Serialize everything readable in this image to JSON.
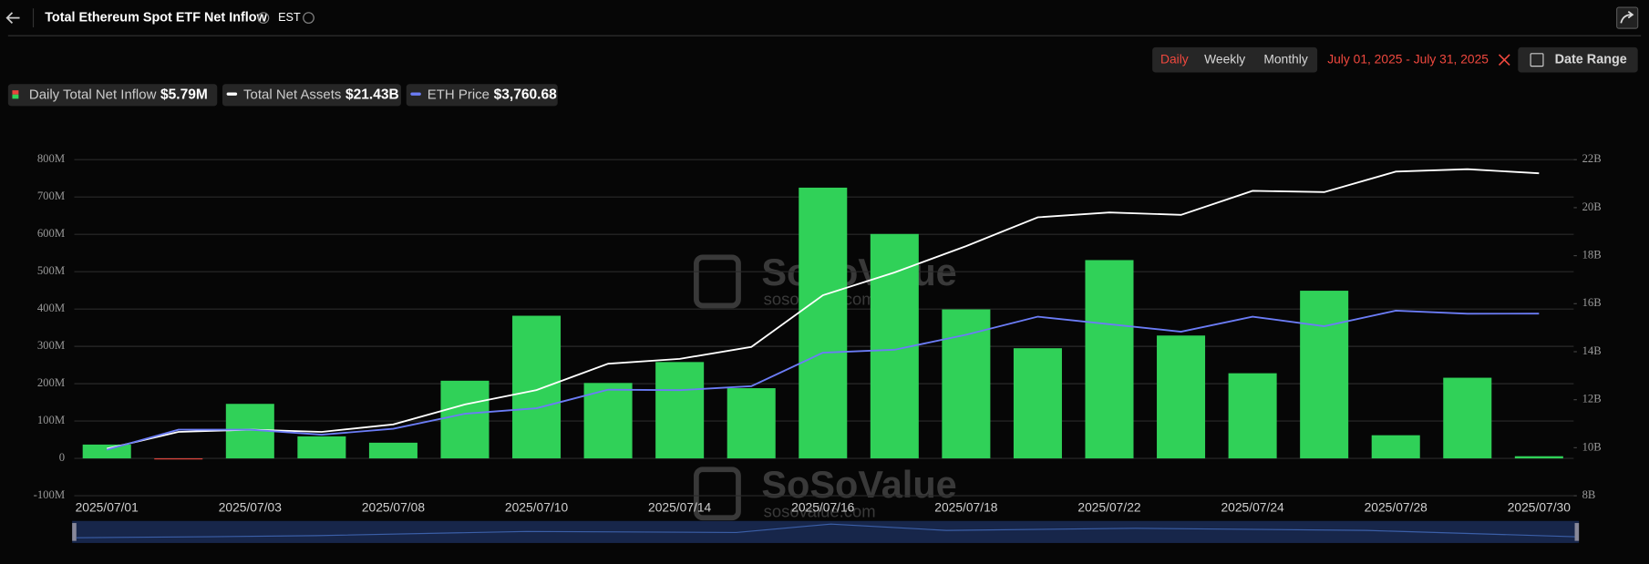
{
  "header": {
    "title": "Total Ethereum Spot ETF Net Inflow",
    "timezone": "EST",
    "periods": [
      "Daily",
      "Weekly",
      "Monthly"
    ],
    "active_period": "Daily",
    "date_range_text": "July 01, 2025 - July 31, 2025",
    "date_range_button": "Date Range"
  },
  "watermark": {
    "brand": "SoSoValue",
    "url": "sosovalue.com"
  },
  "chart_data": {
    "type": "bar-line",
    "categories": [
      "2025/07/01",
      null,
      "2025/07/03",
      null,
      "2025/07/08",
      null,
      "2025/07/10",
      null,
      "2025/07/14",
      null,
      "2025/07/16",
      null,
      "2025/07/18",
      null,
      "2025/07/22",
      null,
      "2025/07/24",
      null,
      "2025/07/28",
      null,
      "2025/07/30"
    ],
    "series": [
      {
        "name": "Daily Total Net Inflow",
        "legend_value": "$5.79M",
        "type": "bar",
        "color": "#30d158",
        "negative_color": "#e8453c",
        "axis": "y",
        "values": [
          37,
          -2,
          146,
          59,
          42,
          208,
          382,
          202,
          258,
          188,
          725,
          601,
          399,
          295,
          531,
          329,
          228,
          449,
          62,
          216,
          5.79
        ]
      },
      {
        "name": "Total Net Assets",
        "legend_value": "$21.43B",
        "type": "line",
        "color": "#ffffff",
        "axis": "y2",
        "values": [
          9.96,
          10.66,
          10.75,
          10.66,
          10.97,
          11.8,
          12.4,
          13.5,
          13.7,
          14.2,
          16.35,
          17.3,
          18.4,
          19.6,
          19.8,
          19.7,
          20.7,
          20.65,
          21.5,
          21.6,
          21.43
        ]
      },
      {
        "name": "ETH Price",
        "legend_value": "$3,760.68",
        "type": "line",
        "color": "#6b7cf5",
        "axis": "y3",
        "values": [
          2400,
          2600,
          2600,
          2550,
          2610,
          2760,
          2815,
          3000,
          2995,
          3035,
          3370,
          3400,
          3550,
          3730,
          3655,
          3580,
          3730,
          3635,
          3790,
          3760,
          3760.68
        ]
      }
    ],
    "ylim": [
      -100,
      800
    ],
    "yticks": [
      {
        "value": -100,
        "label": "-100M"
      },
      0,
      {
        "value": 100,
        "label": "100M"
      },
      {
        "value": 200,
        "label": "200M"
      },
      {
        "value": 300,
        "label": "300M"
      },
      {
        "value": 400,
        "label": "400M"
      },
      {
        "value": 500,
        "label": "500M"
      },
      {
        "value": 600,
        "label": "600M"
      },
      {
        "value": 700,
        "label": "700M"
      },
      {
        "value": 800,
        "label": "800M"
      }
    ],
    "y2lim": [
      8,
      22
    ],
    "y2ticks": [
      {
        "value": 8,
        "label": "8B"
      },
      {
        "value": 10,
        "label": "10B"
      },
      {
        "value": 12,
        "label": "12B"
      },
      {
        "value": 14,
        "label": "14B"
      },
      {
        "value": 16,
        "label": "16B"
      },
      {
        "value": 18,
        "label": "18B"
      },
      {
        "value": 20,
        "label": "20B"
      },
      {
        "value": 22,
        "label": "22B"
      }
    ],
    "y3lim": [
      1940,
      5300
    ],
    "grid": true
  }
}
